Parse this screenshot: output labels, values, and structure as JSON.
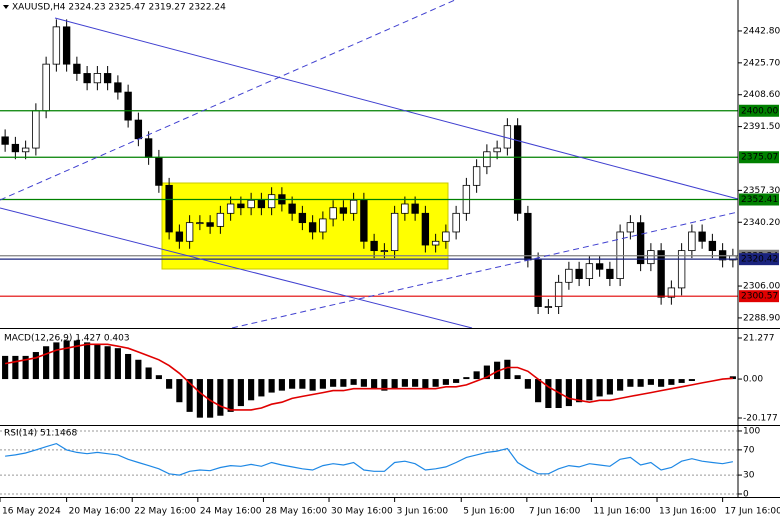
{
  "chart_data": [
    {
      "type": "candlestick",
      "title": "XAUUSD,H4  2324.23 2325.47 2319.27 2322.24",
      "open": [
        2386,
        2382,
        2378,
        2380,
        2400,
        2425,
        2445,
        2425,
        2420,
        2415,
        2420,
        2415,
        2410,
        2395,
        2385,
        2375,
        2360,
        2335,
        2330,
        2340,
        2340,
        2338,
        2345,
        2350,
        2348,
        2352,
        2348,
        2355,
        2350,
        2345,
        2340,
        2335,
        2342,
        2348,
        2345,
        2352,
        2330,
        2325,
        2325,
        2345,
        2350,
        2345,
        2328,
        2330,
        2335,
        2345,
        2360,
        2370,
        2378,
        2380,
        2392,
        2345,
        2320,
        2295,
        2295,
        2308,
        2315,
        2310,
        2318,
        2315,
        2310,
        2335,
        2340,
        2318,
        2325,
        2300,
        2305,
        2325,
        2335,
        2330,
        2325,
        2320
      ],
      "high": [
        2390,
        2386,
        2384,
        2404,
        2429,
        2449,
        2449,
        2429,
        2424,
        2424,
        2424,
        2419,
        2414,
        2399,
        2389,
        2379,
        2364,
        2339,
        2344,
        2344,
        2344,
        2349,
        2354,
        2354,
        2356,
        2356,
        2359,
        2359,
        2354,
        2349,
        2344,
        2346,
        2352,
        2352,
        2356,
        2356,
        2334,
        2329,
        2349,
        2354,
        2354,
        2349,
        2334,
        2339,
        2349,
        2364,
        2374,
        2382,
        2384,
        2396,
        2396,
        2349,
        2324,
        2299,
        2312,
        2319,
        2319,
        2322,
        2322,
        2319,
        2339,
        2344,
        2344,
        2329,
        2329,
        2309,
        2329,
        2339,
        2339,
        2334,
        2329,
        2326
      ],
      "low": [
        2378,
        2374,
        2374,
        2376,
        2396,
        2421,
        2421,
        2416,
        2411,
        2411,
        2411,
        2406,
        2391,
        2381,
        2371,
        2356,
        2331,
        2326,
        2326,
        2336,
        2334,
        2334,
        2341,
        2344,
        2344,
        2344,
        2344,
        2346,
        2341,
        2336,
        2331,
        2331,
        2338,
        2341,
        2341,
        2326,
        2321,
        2321,
        2321,
        2341,
        2341,
        2324,
        2324,
        2326,
        2331,
        2341,
        2356,
        2366,
        2374,
        2376,
        2341,
        2316,
        2291,
        2291,
        2291,
        2304,
        2306,
        2306,
        2311,
        2306,
        2306,
        2331,
        2314,
        2314,
        2296,
        2296,
        2301,
        2321,
        2326,
        2321,
        2316,
        2316
      ],
      "close": [
        2382,
        2378,
        2380,
        2400,
        2425,
        2445,
        2425,
        2420,
        2415,
        2420,
        2415,
        2410,
        2395,
        2385,
        2375,
        2360,
        2335,
        2330,
        2340,
        2340,
        2338,
        2345,
        2350,
        2348,
        2352,
        2348,
        2355,
        2350,
        2345,
        2340,
        2335,
        2342,
        2348,
        2345,
        2352,
        2330,
        2325,
        2325,
        2345,
        2350,
        2345,
        2328,
        2330,
        2335,
        2345,
        2360,
        2370,
        2378,
        2380,
        2392,
        2345,
        2320,
        2295,
        2295,
        2308,
        2315,
        2310,
        2318,
        2315,
        2310,
        2335,
        2340,
        2318,
        2325,
        2300,
        2305,
        2325,
        2335,
        2330,
        2325,
        2320,
        2322.24
      ],
      "up_color": "#ffffff",
      "down_color": "#000000",
      "ylim": [
        2283.5,
        2459.4
      ],
      "yticks": [
        {
          "value": 2442.8,
          "label": "2442.80"
        },
        {
          "value": 2425.7,
          "label": "2425.70"
        },
        {
          "value": 2408.6,
          "label": "2408.60"
        },
        {
          "value": 2391.5,
          "label": "2391.50"
        },
        {
          "value": 2357.3,
          "label": "2357.30"
        },
        {
          "value": 2340.2,
          "label": "2340.20"
        },
        {
          "value": 2306.0,
          "label": "2306.00"
        },
        {
          "value": 2288.9,
          "label": "2288.90"
        }
      ],
      "levels": [
        {
          "value": 2400,
          "label": "2400.00",
          "color": "#008000"
        },
        {
          "value": 2375.07,
          "label": "2375.07",
          "color": "#008000"
        },
        {
          "value": 2352.41,
          "label": "2352.41",
          "color": "#008000"
        },
        {
          "value": 2322.24,
          "label": "2322.24",
          "color": "#808080"
        },
        {
          "value": 2320.42,
          "label": "2320.42",
          "color": "#1a237e"
        },
        {
          "value": 2300.57,
          "label": "2300.57",
          "color": "#e00000"
        }
      ],
      "xlim": [
        0,
        72
      ],
      "xticks": [
        {
          "value": 0,
          "label": "16 May 2024"
        },
        {
          "value": 6.5,
          "label": "20 May 16:00"
        },
        {
          "value": 12.9,
          "label": "22 May 16:00"
        },
        {
          "value": 19.3,
          "label": "24 May 16:00"
        },
        {
          "value": 25.7,
          "label": "28 May 16:00"
        },
        {
          "value": 32.1,
          "label": "30 May 16:00"
        },
        {
          "value": 38.5,
          "label": "3 Jun 16:00"
        },
        {
          "value": 45,
          "label": "5 Jun 16:00"
        },
        {
          "value": 51.4,
          "label": "7 Jun 16:00"
        },
        {
          "value": 57.7,
          "label": "11 Jun 16:00"
        },
        {
          "value": 64.1,
          "label": "13 Jun 16:00"
        },
        {
          "value": 70.5,
          "label": "17 Jun 16:00"
        }
      ]
    },
    {
      "type": "macd",
      "title": "MACD(12,26,9) 1.427 0.403",
      "histogram": {
        "color": "#000000",
        "values": [
          12,
          12,
          12,
          14,
          17,
          19,
          20,
          20,
          19,
          18,
          17,
          16,
          13,
          10,
          6,
          2,
          -5,
          -12,
          -17,
          -20,
          -20,
          -19,
          -17,
          -14,
          -11,
          -9,
          -7,
          -6,
          -5,
          -5,
          -6,
          -5,
          -4,
          -4,
          -3,
          -4,
          -5,
          -6,
          -5,
          -4,
          -4,
          -5,
          -4,
          -3,
          -2,
          1,
          4,
          7,
          9,
          10,
          2,
          -5,
          -12,
          -15,
          -15,
          -14,
          -12,
          -11,
          -9,
          -8,
          -6,
          -4,
          -4,
          -3,
          -4,
          -3,
          -2,
          -1,
          0,
          0,
          0,
          1.427
        ]
      },
      "signal": {
        "color": "#e00000",
        "values": [
          8,
          9,
          10,
          11,
          13,
          15,
          16,
          17,
          18,
          18,
          18,
          17,
          16,
          14,
          12,
          10,
          7,
          3,
          -2,
          -7,
          -11,
          -14,
          -16,
          -16,
          -16,
          -15,
          -13,
          -12,
          -10,
          -9,
          -8,
          -7,
          -6,
          -6,
          -5,
          -5,
          -5,
          -5,
          -5,
          -5,
          -5,
          -5,
          -5,
          -4,
          -4,
          -3,
          -1,
          1,
          4,
          6,
          6,
          4,
          0,
          -4,
          -7,
          -10,
          -11,
          -12,
          -11,
          -11,
          -10,
          -9,
          -8,
          -7,
          -6,
          -5,
          -4,
          -3,
          -2,
          -1,
          0,
          0.403
        ]
      },
      "ylim": [
        -23.8,
        24.9
      ],
      "yticks": [
        21.277,
        {
          "value": 0,
          "label": "0.00"
        },
        -20.177
      ]
    },
    {
      "type": "line",
      "title": "RSI(14) 51.1468",
      "color": "#1e88e5",
      "values": [
        60,
        62,
        65,
        70,
        75,
        80,
        70,
        66,
        64,
        66,
        64,
        62,
        55,
        50,
        45,
        40,
        32,
        30,
        36,
        38,
        37,
        42,
        45,
        44,
        47,
        44,
        50,
        46,
        43,
        40,
        38,
        45,
        48,
        46,
        50,
        38,
        36,
        36,
        50,
        52,
        48,
        38,
        40,
        43,
        50,
        58,
        62,
        66,
        68,
        72,
        50,
        40,
        32,
        32,
        40,
        45,
        43,
        48,
        46,
        44,
        55,
        58,
        46,
        50,
        38,
        42,
        52,
        56,
        52,
        50,
        48,
        51.1468
      ],
      "ylim": [
        -4.8,
        106.3
      ],
      "yticks": [
        100,
        70,
        30,
        0
      ]
    }
  ]
}
